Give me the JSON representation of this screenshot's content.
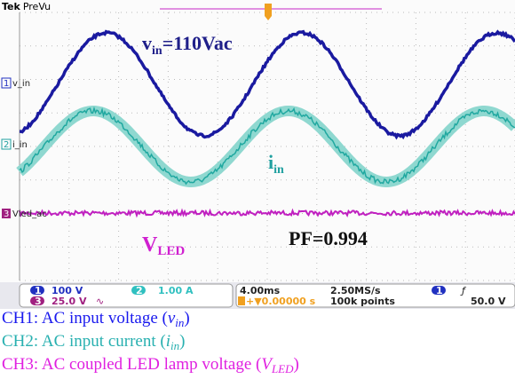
{
  "header": {
    "brand": "Tek",
    "mode": "PreVu"
  },
  "channels": [
    {
      "marker": "1",
      "label": "v_in"
    },
    {
      "marker": "2",
      "label": "i_in"
    },
    {
      "marker": "3",
      "label": "Vled_ac"
    }
  ],
  "annotations": {
    "vin": {
      "symbol": "v",
      "subscript": "in",
      "text": "=110Vac"
    },
    "iin": {
      "symbol": "i",
      "subscript": "in"
    },
    "vled": {
      "symbol": "V",
      "subscript": "LED"
    },
    "pf": "PF=0.994"
  },
  "status": {
    "ch1": {
      "marker": "1",
      "scale": "100 V"
    },
    "ch2": {
      "marker": "2",
      "scale": "1.00 A"
    },
    "ch3": {
      "marker": "3",
      "scale": "25.0 V"
    },
    "timebase": "4.00ms",
    "sample_rate": "2.50MS/s",
    "delay": "+▼0.00000 s",
    "record": "100k points",
    "trigger": {
      "marker": "1",
      "level": "50.0 V"
    }
  },
  "captions": [
    {
      "prefix": "CH1: AC input voltage (",
      "symbol": "v",
      "subscript": "in",
      "suffix": ")"
    },
    {
      "prefix": "CH2: AC input current (",
      "symbol": "i",
      "subscript": "in",
      "suffix": ")"
    },
    {
      "prefix": "CH3: AC coupled LED lamp voltage (",
      "symbol": "V",
      "subscript": "LED",
      "suffix": ")"
    }
  ]
}
